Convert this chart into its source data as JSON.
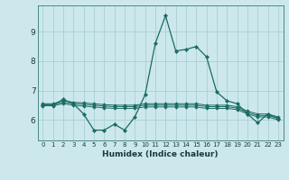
{
  "title": "",
  "xlabel": "Humidex (Indice chaleur)",
  "ylabel": "",
  "bg_color": "#cce8ec",
  "grid_color": "#aacfd4",
  "line_color": "#1a6b62",
  "x": [
    0,
    1,
    2,
    3,
    4,
    5,
    6,
    7,
    8,
    9,
    10,
    11,
    12,
    13,
    14,
    15,
    16,
    17,
    18,
    19,
    20,
    21,
    22,
    23
  ],
  "line1": [
    6.5,
    6.5,
    6.7,
    6.55,
    6.2,
    5.65,
    5.65,
    5.85,
    5.65,
    6.1,
    6.85,
    8.6,
    9.55,
    8.35,
    8.4,
    8.5,
    8.15,
    6.95,
    6.65,
    6.55,
    6.2,
    5.9,
    6.2,
    6.05
  ],
  "line2": [
    6.55,
    6.55,
    6.65,
    6.6,
    6.58,
    6.55,
    6.52,
    6.5,
    6.5,
    6.5,
    6.55,
    6.55,
    6.55,
    6.55,
    6.55,
    6.55,
    6.5,
    6.5,
    6.5,
    6.45,
    6.3,
    6.2,
    6.2,
    6.1
  ],
  "line3": [
    6.52,
    6.52,
    6.6,
    6.55,
    6.53,
    6.5,
    6.47,
    6.45,
    6.45,
    6.45,
    6.5,
    6.5,
    6.5,
    6.5,
    6.5,
    6.5,
    6.45,
    6.45,
    6.45,
    6.4,
    6.25,
    6.15,
    6.15,
    6.05
  ],
  "line4": [
    6.48,
    6.48,
    6.55,
    6.5,
    6.47,
    6.44,
    6.41,
    6.39,
    6.39,
    6.39,
    6.44,
    6.44,
    6.44,
    6.44,
    6.44,
    6.44,
    6.39,
    6.39,
    6.39,
    6.35,
    6.2,
    6.1,
    6.1,
    6.0
  ],
  "ylim": [
    5.3,
    9.9
  ],
  "yticks": [
    6,
    7,
    8,
    9
  ],
  "xticks": [
    0,
    1,
    2,
    3,
    4,
    5,
    6,
    7,
    8,
    9,
    10,
    11,
    12,
    13,
    14,
    15,
    16,
    17,
    18,
    19,
    20,
    21,
    22,
    23
  ],
  "marker": "D",
  "markersize": 2.2,
  "lw1": 0.9,
  "lw2": 0.7
}
